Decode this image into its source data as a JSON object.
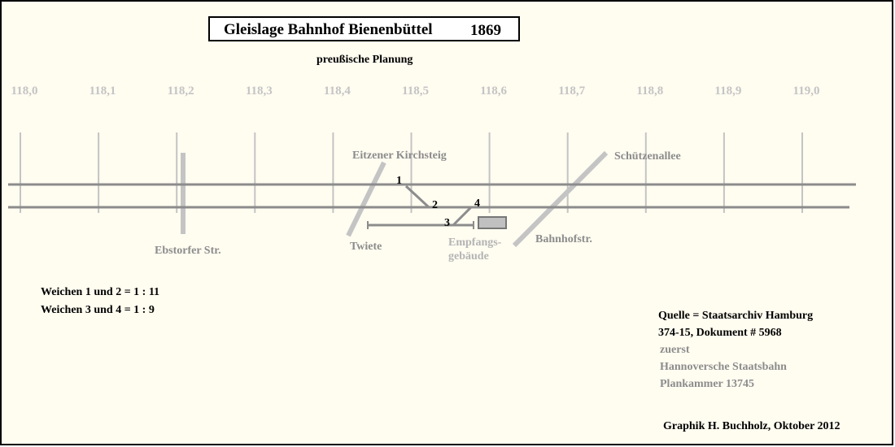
{
  "header": {
    "title": "Gleislage Bahnhof Bienenbüttel",
    "year": "1869",
    "subtitle": "preußische Planung"
  },
  "km_labels": [
    "118,0",
    "118,1",
    "118,2",
    "118,3",
    "118,4",
    "118,5",
    "118,6",
    "118,7",
    "118,8",
    "118,9",
    "119,0"
  ],
  "streets": {
    "ebstorfer": "Ebstorfer Str.",
    "eitzener": "Eitzener Kirchsteig",
    "twiete": "Twiete",
    "schuetzenallee": "Schützenallee",
    "bahnhofstr": "Bahnhofstr."
  },
  "switches": [
    "1",
    "2",
    "3",
    "4"
  ],
  "building": [
    "Empfangs-",
    "gebäude"
  ],
  "notes": [
    "Weichen 1 und 2 = 1 : 11",
    "Weichen 3 und 4 = 1 : 9"
  ],
  "source": [
    "Quelle = Staatsarchiv Hamburg",
    "374-15, Dokument # 5968",
    "zuerst",
    "Hannoversche Staatsbahn",
    "Plankammer 13745"
  ],
  "credit": "Graphik H. Buchholz, Oktober 2012"
}
